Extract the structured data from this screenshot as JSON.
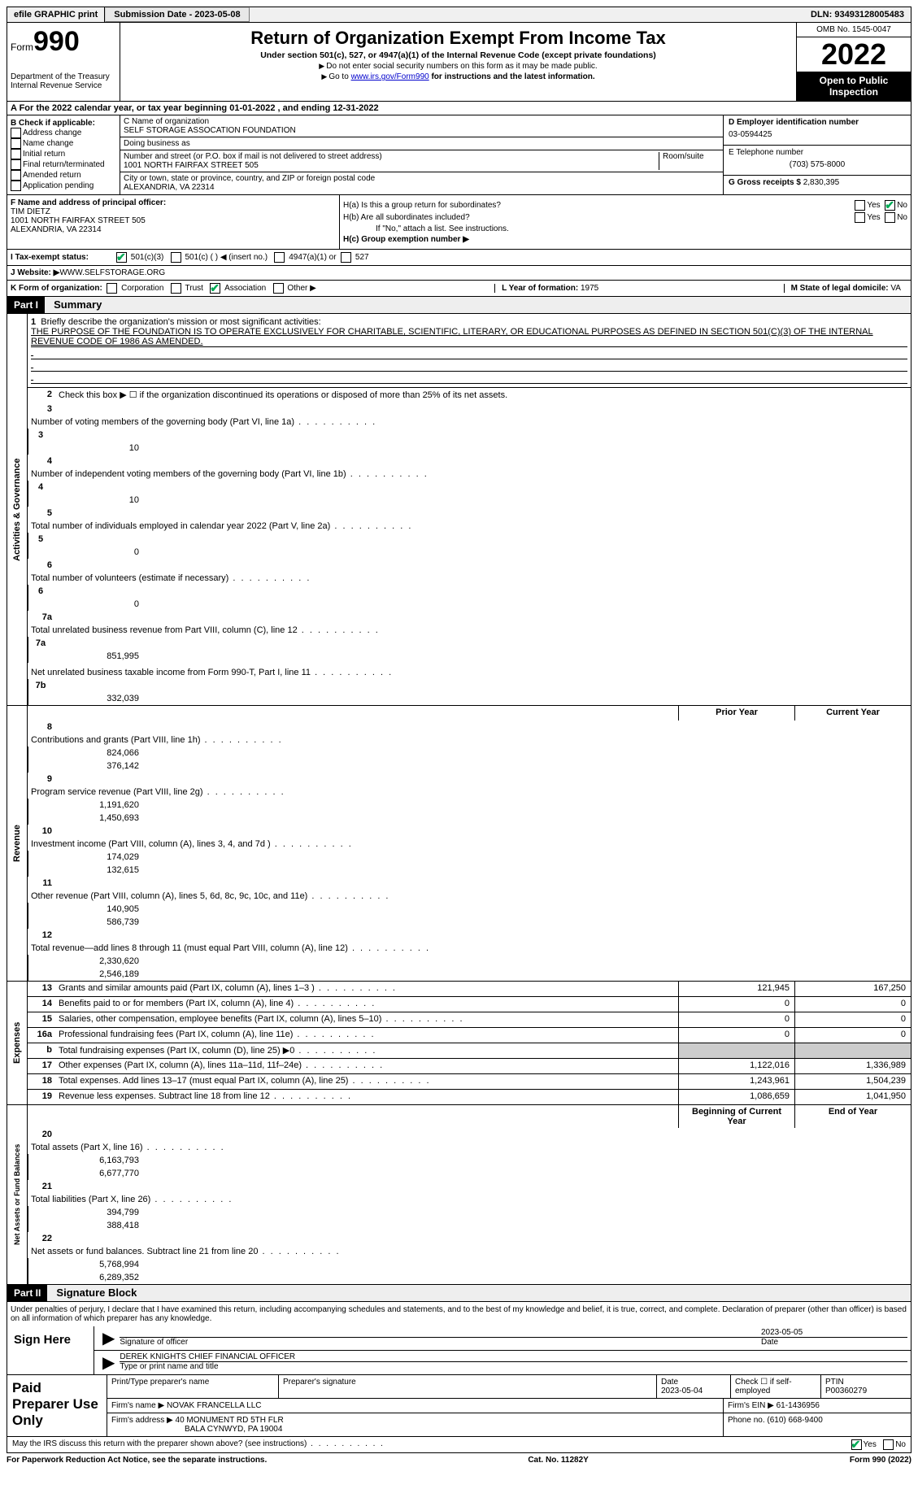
{
  "topbar": {
    "efile": "efile GRAPHIC print",
    "submission_label": "Submission Date - ",
    "submission_date": "2023-05-08",
    "dln_label": "DLN: ",
    "dln": "93493128005483"
  },
  "header": {
    "form_word": "Form",
    "form_num": "990",
    "dept": "Department of the Treasury\nInternal Revenue Service",
    "title": "Return of Organization Exempt From Income Tax",
    "subtitle": "Under section 501(c), 527, or 4947(a)(1) of the Internal Revenue Code (except private foundations)",
    "note1": "Do not enter social security numbers on this form as it may be made public.",
    "note2_pre": "Go to ",
    "note2_link": "www.irs.gov/Form990",
    "note2_post": " for instructions and the latest information.",
    "omb": "OMB No. 1545-0047",
    "year": "2022",
    "inspect": "Open to Public Inspection"
  },
  "rowA": {
    "text": "A For the 2022 calendar year, or tax year beginning ",
    "begin": "01-01-2022",
    "mid": "   , and ending ",
    "end": "12-31-2022"
  },
  "colB": {
    "label": "B Check if applicable:",
    "opts": [
      "Address change",
      "Name change",
      "Initial return",
      "Final return/terminated",
      "Amended return",
      "Application pending"
    ]
  },
  "colC": {
    "name_label": "C Name of organization",
    "name": "SELF STORAGE ASSOCATION FOUNDATION",
    "dba_label": "Doing business as",
    "dba": "",
    "addr_label": "Number and street (or P.O. box if mail is not delivered to street address)",
    "room_label": "Room/suite",
    "addr": "1001 NORTH FAIRFAX STREET 505",
    "city_label": "City or town, state or province, country, and ZIP or foreign postal code",
    "city": "ALEXANDRIA, VA  22314"
  },
  "colD": {
    "ein_label": "D Employer identification number",
    "ein": "03-0594425",
    "phone_label": "E Telephone number",
    "phone": "(703) 575-8000",
    "gross_label": "G Gross receipts $ ",
    "gross": "2,830,395"
  },
  "colF": {
    "label": "F  Name and address of principal officer:",
    "name": "TIM DIETZ",
    "addr1": "1001 NORTH FAIRFAX STREET 505",
    "addr2": "ALEXANDRIA, VA  22314"
  },
  "colH": {
    "ha": "H(a)  Is this a group return for subordinates?",
    "hb": "H(b)  Are all subordinates included?",
    "hb_note": "If \"No,\" attach a list. See instructions.",
    "hc": "H(c)  Group exemption number ▶",
    "yes": "Yes",
    "no": "No"
  },
  "taxRow": {
    "label": "I   Tax-exempt status:",
    "o1": "501(c)(3)",
    "o2": "501(c) (  ) ◀ (insert no.)",
    "o3": "4947(a)(1) or",
    "o4": "527"
  },
  "webRow": {
    "label": "J   Website: ▶  ",
    "url": "WWW.SELFSTORAGE.ORG"
  },
  "kRow": {
    "k": "K Form of organization:",
    "opts": [
      "Corporation",
      "Trust",
      "Association",
      "Other ▶"
    ],
    "l_label": "L Year of formation: ",
    "l_val": "1975",
    "m_label": "M State of legal domicile: ",
    "m_val": "VA"
  },
  "part1": {
    "hdr": "Part I",
    "title": "Summary",
    "q1": "Briefly describe the organization's mission or most significant activities:",
    "mission": "THE PURPOSE OF THE FOUNDATION IS TO OPERATE EXCLUSIVELY FOR CHARITABLE, SCIENTIFIC, LITERARY, OR EDUCATIONAL PURPOSES AS DEFINED IN SECTION 501(C)(3) OF THE INTERNAL REVENUE CODE OF 1986 AS AMENDED.",
    "q2": "Check this box ▶ ☐  if the organization discontinued its operations or disposed of more than 25% of its net assets."
  },
  "sideLabels": {
    "gov": "Activities & Governance",
    "rev": "Revenue",
    "exp": "Expenses",
    "net": "Net Assets or Fund Balances"
  },
  "govLines": [
    {
      "n": "3",
      "d": "Number of voting members of the governing body (Part VI, line 1a)",
      "b": "3",
      "v": "10"
    },
    {
      "n": "4",
      "d": "Number of independent voting members of the governing body (Part VI, line 1b)",
      "b": "4",
      "v": "10"
    },
    {
      "n": "5",
      "d": "Total number of individuals employed in calendar year 2022 (Part V, line 2a)",
      "b": "5",
      "v": "0"
    },
    {
      "n": "6",
      "d": "Total number of volunteers (estimate if necessary)",
      "b": "6",
      "v": "0"
    },
    {
      "n": "7a",
      "d": "Total unrelated business revenue from Part VIII, column (C), line 12",
      "b": "7a",
      "v": "851,995"
    },
    {
      "n": "",
      "d": "Net unrelated business taxable income from Form 990-T, Part I, line 11",
      "b": "7b",
      "v": "332,039"
    }
  ],
  "twoColHdr": {
    "prior": "Prior Year",
    "current": "Current Year"
  },
  "revLines": [
    {
      "n": "8",
      "d": "Contributions and grants (Part VIII, line 1h)",
      "p": "824,066",
      "c": "376,142"
    },
    {
      "n": "9",
      "d": "Program service revenue (Part VIII, line 2g)",
      "p": "1,191,620",
      "c": "1,450,693"
    },
    {
      "n": "10",
      "d": "Investment income (Part VIII, column (A), lines 3, 4, and 7d )",
      "p": "174,029",
      "c": "132,615"
    },
    {
      "n": "11",
      "d": "Other revenue (Part VIII, column (A), lines 5, 6d, 8c, 9c, 10c, and 11e)",
      "p": "140,905",
      "c": "586,739"
    },
    {
      "n": "12",
      "d": "Total revenue—add lines 8 through 11 (must equal Part VIII, column (A), line 12)",
      "p": "2,330,620",
      "c": "2,546,189"
    }
  ],
  "expLines": [
    {
      "n": "13",
      "d": "Grants and similar amounts paid (Part IX, column (A), lines 1–3 )",
      "p": "121,945",
      "c": "167,250"
    },
    {
      "n": "14",
      "d": "Benefits paid to or for members (Part IX, column (A), line 4)",
      "p": "0",
      "c": "0"
    },
    {
      "n": "15",
      "d": "Salaries, other compensation, employee benefits (Part IX, column (A), lines 5–10)",
      "p": "0",
      "c": "0"
    },
    {
      "n": "16a",
      "d": "Professional fundraising fees (Part IX, column (A), line 11e)",
      "p": "0",
      "c": "0"
    },
    {
      "n": "b",
      "d": "Total fundraising expenses (Part IX, column (D), line 25) ▶0",
      "p": "",
      "c": "",
      "grey": true
    },
    {
      "n": "17",
      "d": "Other expenses (Part IX, column (A), lines 11a–11d, 11f–24e)",
      "p": "1,122,016",
      "c": "1,336,989"
    },
    {
      "n": "18",
      "d": "Total expenses. Add lines 13–17 (must equal Part IX, column (A), line 25)",
      "p": "1,243,961",
      "c": "1,504,239"
    },
    {
      "n": "19",
      "d": "Revenue less expenses. Subtract line 18 from line 12",
      "p": "1,086,659",
      "c": "1,041,950"
    }
  ],
  "netHdr": {
    "begin": "Beginning of Current Year",
    "end": "End of Year"
  },
  "netLines": [
    {
      "n": "20",
      "d": "Total assets (Part X, line 16)",
      "p": "6,163,793",
      "c": "6,677,770"
    },
    {
      "n": "21",
      "d": "Total liabilities (Part X, line 26)",
      "p": "394,799",
      "c": "388,418"
    },
    {
      "n": "22",
      "d": "Net assets or fund balances. Subtract line 21 from line 20",
      "p": "5,768,994",
      "c": "6,289,352"
    }
  ],
  "part2": {
    "hdr": "Part II",
    "title": "Signature Block",
    "decl": "Under penalties of perjury, I declare that I have examined this return, including accompanying schedules and statements, and to the best of my knowledge and belief, it is true, correct, and complete. Declaration of preparer (other than officer) is based on all information of which preparer has any knowledge."
  },
  "sign": {
    "label": "Sign Here",
    "sig_label": "Signature of officer",
    "date_label": "Date",
    "date": "2023-05-05",
    "name": "DEREK KNIGHTS  CHIEF FINANCIAL OFFICER",
    "name_label": "Type or print name and title"
  },
  "prep": {
    "label": "Paid Preparer Use Only",
    "c1": "Print/Type preparer's name",
    "c2": "Preparer's signature",
    "c3_label": "Date",
    "c3": "2023-05-04",
    "c4": "Check ☐ if self-employed",
    "c5_label": "PTIN",
    "c5": "P00360279",
    "firm_label": "Firm's name    ▶ ",
    "firm": "NOVAK FRANCELLA LLC",
    "ein_label": "Firm's EIN ▶ ",
    "ein": "61-1436956",
    "addr_label": "Firm's address ▶ ",
    "addr1": "40 MONUMENT RD 5TH FLR",
    "addr2": "BALA CYNWYD, PA  19004",
    "phone_label": "Phone no. ",
    "phone": "(610) 668-9400"
  },
  "footer": {
    "discuss": "May the IRS discuss this return with the preparer shown above? (see instructions)",
    "yes": "Yes",
    "no": "No",
    "paperwork": "For Paperwork Reduction Act Notice, see the separate instructions.",
    "cat": "Cat. No. 11282Y",
    "form": "Form 990 (2022)"
  }
}
